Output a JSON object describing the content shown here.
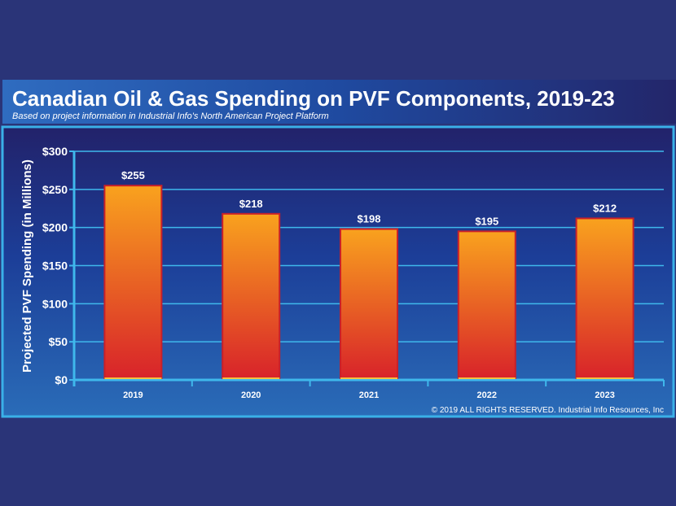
{
  "colors": {
    "page_bg": "#2a3478",
    "grid": "#3fb8ec",
    "bar_top": "#f9a21e",
    "bar_bottom": "#d8232a",
    "bar_border": "#c8202a"
  },
  "chart_data": {
    "type": "bar",
    "title": "Canadian Oil & Gas Spending on PVF Components, 2019-23",
    "subtitle": "Based on project information in Industrial Info's North American Project Platform",
    "xlabel": "",
    "ylabel": "Projected PVF Spending (in Millions)",
    "categories": [
      "2019",
      "2020",
      "2021",
      "2022",
      "2023"
    ],
    "values": [
      255,
      218,
      198,
      195,
      212
    ],
    "data_labels": [
      "$255",
      "$218",
      "$198",
      "$195",
      "$212"
    ],
    "ylim": [
      0,
      300
    ],
    "yticks": [
      0,
      50,
      100,
      150,
      200,
      250,
      300
    ],
    "ytick_labels": [
      "$0",
      "$50",
      "$100",
      "$150",
      "$200",
      "$250",
      "$300"
    ],
    "grid": true,
    "legend": "none"
  },
  "footer": {
    "copyright": "© 2019 ALL RIGHTS RESERVED. Industrial Info Resources, Inc"
  }
}
